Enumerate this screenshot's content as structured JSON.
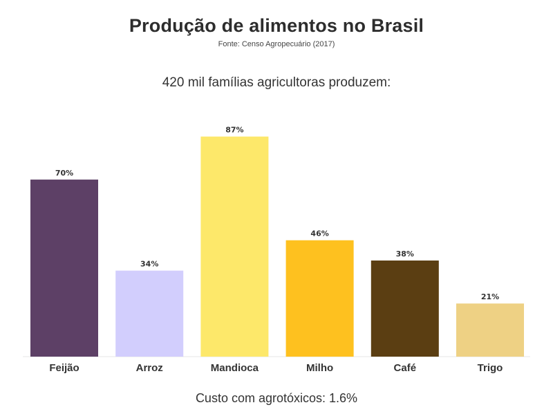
{
  "header": {
    "title": "Produção de alimentos no Brasil",
    "source": "Fonte: Censo Agropecuário (2017)"
  },
  "chart_data": {
    "type": "bar",
    "title": "420 mil famílias agricultoras produzem:",
    "categories": [
      "Feijão",
      "Arroz",
      "Mandioca",
      "Milho",
      "Café",
      "Trigo"
    ],
    "values": [
      70,
      34,
      87,
      46,
      38,
      21
    ],
    "value_labels": [
      "70%",
      "34%",
      "87%",
      "46%",
      "38%",
      "21%"
    ],
    "colors": [
      "#5d4066",
      "#d2cefd",
      "#fde86a",
      "#fec11f",
      "#5b3e12",
      "#eed184"
    ],
    "ylim": [
      0,
      100
    ],
    "grid": false,
    "xlabel": "",
    "ylabel": ""
  },
  "footer": {
    "note": "Custo com agrotóxicos: 1.6%"
  }
}
